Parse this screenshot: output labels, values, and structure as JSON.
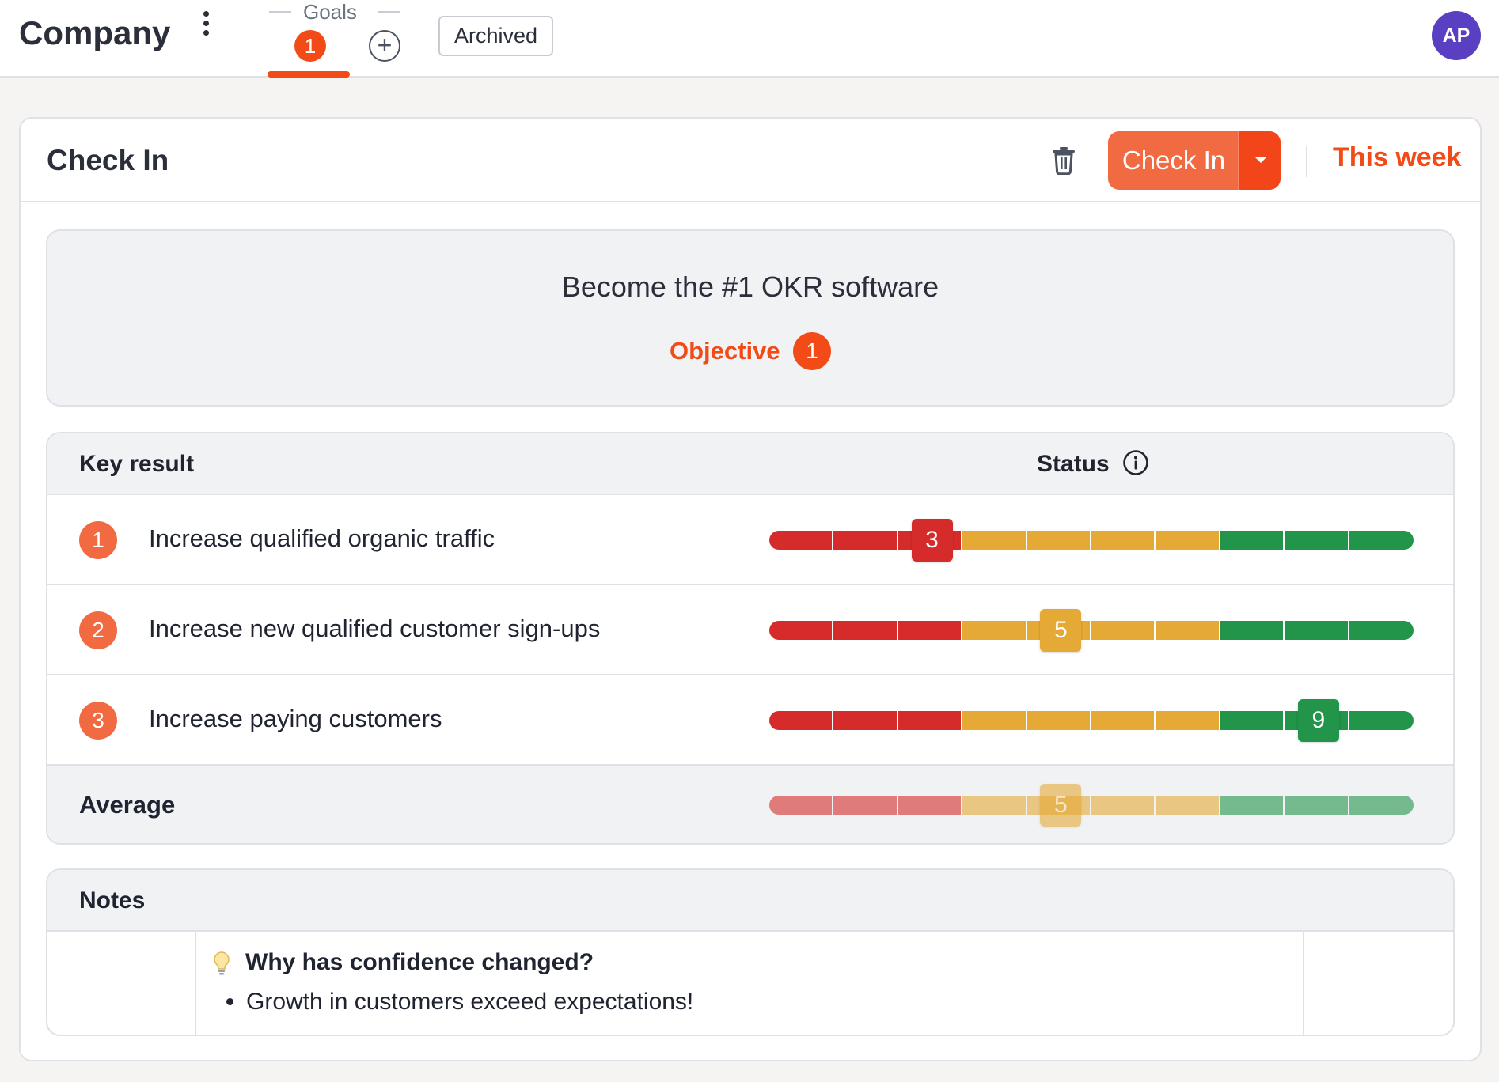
{
  "topbar": {
    "brand": "Company",
    "goals_tab": {
      "label": "Goals",
      "count": "1"
    },
    "archived_label": "Archived",
    "avatar_initials": "AP"
  },
  "checkin": {
    "title": "Check In",
    "button_label": "Check In",
    "period": "This week"
  },
  "objective": {
    "title": "Become the #1 OKR software",
    "label": "Objective",
    "number": "1"
  },
  "key_results": {
    "column_key_result": "Key result",
    "column_status": "Status",
    "items": [
      {
        "number": "1",
        "text": "Increase qualified organic traffic",
        "confidence": 3,
        "confidence_label": "3"
      },
      {
        "number": "2",
        "text": "Increase new qualified customer sign-ups",
        "confidence": 5,
        "confidence_label": "5"
      },
      {
        "number": "3",
        "text": "Increase paying customers",
        "confidence": 9,
        "confidence_label": "9"
      }
    ],
    "average": {
      "label": "Average",
      "confidence": 5,
      "confidence_label": "5"
    }
  },
  "notes": {
    "title": "Notes",
    "question": "Why has confidence changed?",
    "bullets": [
      "Growth in customers exceed expectations!"
    ]
  },
  "colors": {
    "accent": "#f24b18",
    "accent_light": "#f26a42",
    "red": "#d62b2b",
    "yellow": "#e5a935",
    "green": "#22954a",
    "avatar": "#5b3fc2"
  },
  "icons": {
    "menu": "kebab-menu-icon",
    "add": "plus-circle-icon",
    "delete": "trash-icon",
    "dropdown": "caret-down-icon",
    "info": "info-circle-icon",
    "note": "lightbulb-icon"
  }
}
